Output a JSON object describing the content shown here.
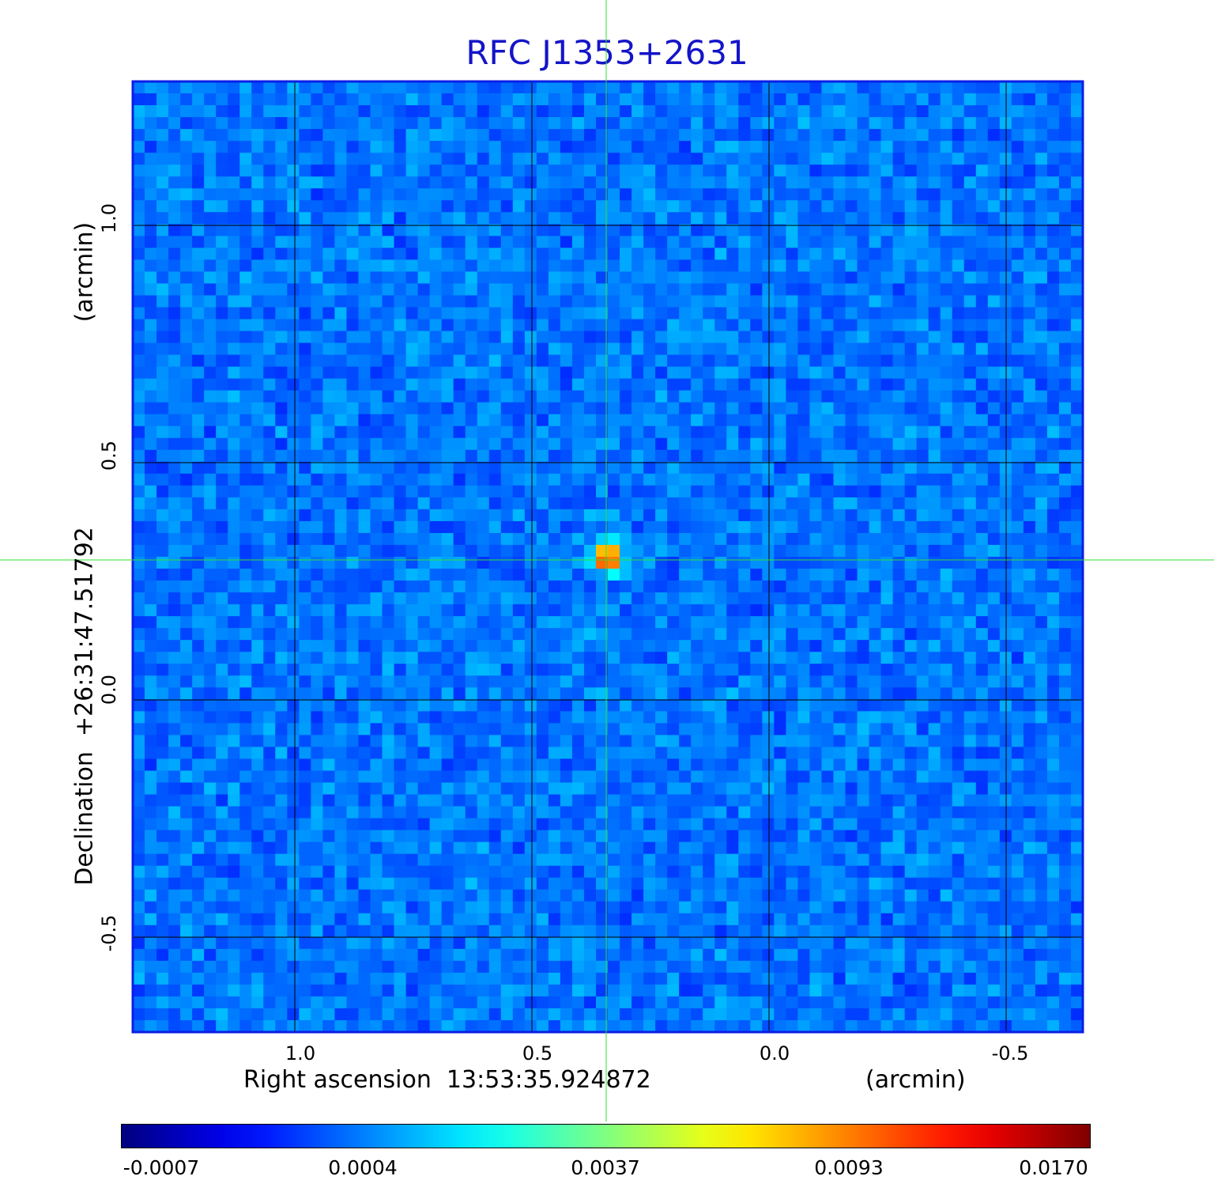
{
  "title": "RFC J1353+2631",
  "x_axis": {
    "label": "Right ascension  13:53:35.924872",
    "unit": "(arcmin)",
    "ticks": [
      "1.0",
      "0.5",
      "0.0",
      "-0.5"
    ]
  },
  "y_axis": {
    "label": "Declination  +26:31:47.51792",
    "unit": "(arcmin)",
    "ticks": [
      "1.0",
      "0.5",
      "0.0",
      "-0.5"
    ]
  },
  "colorbar": {
    "colormap": "jet",
    "ticks": [
      "-0.0007",
      "0.0004",
      "0.0037",
      "0.0093",
      "0.0170"
    ]
  },
  "colors": {
    "title": "#1414c8",
    "crosshair": "#33dd33",
    "grid": "#000000",
    "frame": "#0a1ee6"
  },
  "source": {
    "ra_offset_arcmin": 0.34,
    "dec_offset_arcmin": 0.3
  }
}
